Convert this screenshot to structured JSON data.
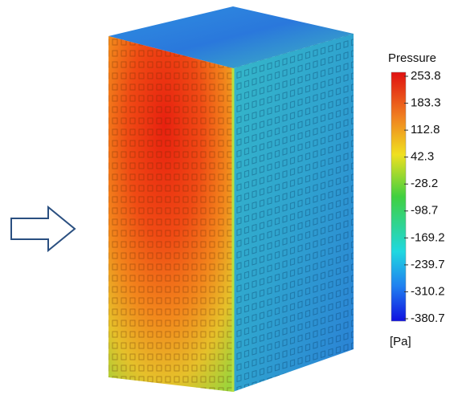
{
  "legend": {
    "title": "Pressure",
    "ticks": [
      253.8,
      183.3,
      112.8,
      42.3,
      -28.2,
      -98.7,
      -169.2,
      -239.7,
      -310.2,
      -380.7
    ],
    "unit": "[Pa]"
  }
}
